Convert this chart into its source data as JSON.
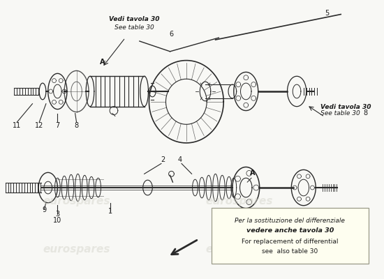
{
  "background_color": "#f8f8f5",
  "watermark_color": "#d5d5cc",
  "watermark_text": "eurospares",
  "line_color": "#2a2a2a",
  "text_color": "#1a1a1a",
  "note_box_color": "#fefef0",
  "note_box_edge": "#999988",
  "callout_ul_line1": "Vedi tavola 30",
  "callout_ul_line2": "See table 30",
  "callout_lr_line1": "Vedi tavola 30",
  "callout_lr_line2": "See table 30",
  "note_line1": "Per la sostituzione del differenziale",
  "note_line2": "vedere anche tavola 30",
  "note_line3": "For replacement of differential",
  "note_line4": "see  also table 30"
}
